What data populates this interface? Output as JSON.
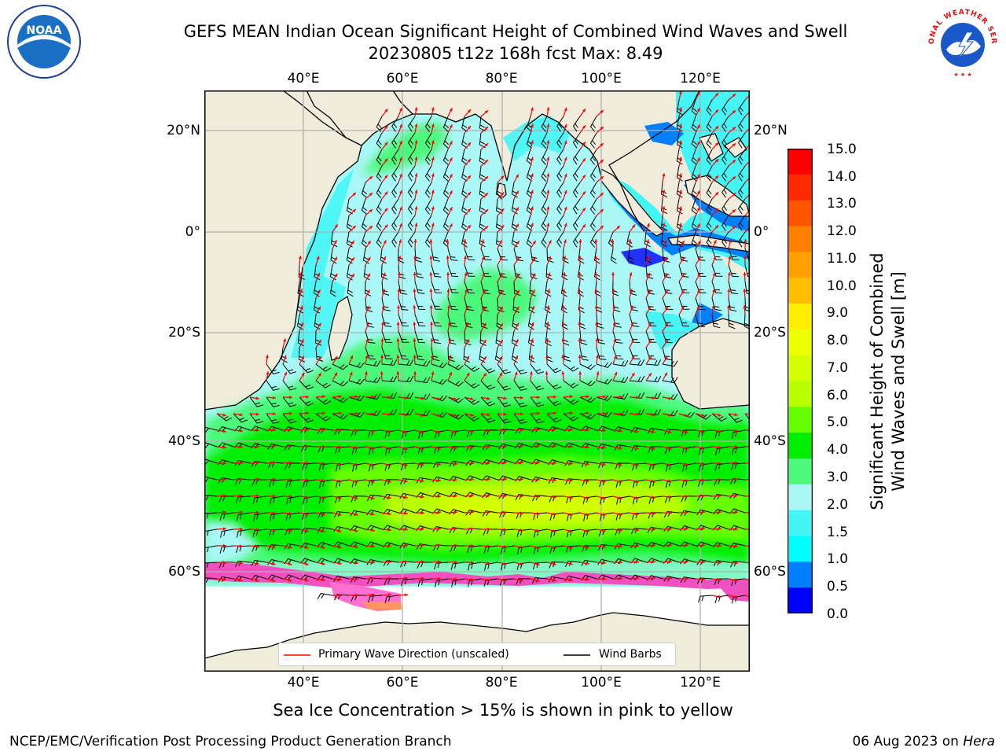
{
  "header": {
    "title_line1": "GEFS MEAN Indian Ocean Significant Height of Combined Wind Waves and Swell",
    "title_line2": "20230805 t12z 168h fcst   Max: 8.49"
  },
  "logos": {
    "noaa_text": "NOAA",
    "nws_text": "NATIONAL WEATHER SERVICE"
  },
  "map": {
    "lon_ticks": [
      "40°E",
      "60°E",
      "80°E",
      "100°E",
      "120°E"
    ],
    "lat_ticks": [
      "20°N",
      "0°",
      "20°S",
      "40°S",
      "60°S"
    ],
    "lon_range": [
      20,
      130
    ],
    "lat_range": [
      -77,
      28
    ],
    "colors": {
      "land": "#efecdc",
      "ocean_base": "#a9f7f7",
      "coast": "#000000",
      "grid": "#b0b0b0",
      "wave_dir": "#ff0000",
      "barb": "#000000"
    }
  },
  "legend": {
    "wave_label": "Primary Wave Direction (unscaled)",
    "barb_label": "Wind Barbs"
  },
  "colorbar": {
    "title_line1": "Significant Height of Combined",
    "title_line2": "Wind Waves and Swell [m]",
    "labels": [
      "15.0",
      "14.0",
      "13.0",
      "12.0",
      "11.0",
      "10.0",
      "9.0",
      "8.0",
      "7.0",
      "6.0",
      "5.0",
      "4.0",
      "3.0",
      "2.0",
      "1.5",
      "1.0",
      "0.5",
      "0.0"
    ],
    "colors": [
      "#ff0000",
      "#ff2a00",
      "#ff5500",
      "#ff8000",
      "#ff9f00",
      "#ffbe00",
      "#ffee00",
      "#f0ff00",
      "#d4ff00",
      "#b8ff00",
      "#66ff00",
      "#00ee00",
      "#4cf97a",
      "#a9f7f7",
      "#45f5f5",
      "#00ffff",
      "#0080ff",
      "#0000ff"
    ]
  },
  "footer": {
    "ice_note": "Sea Ice Concentration > 15% is shown in pink to yellow",
    "left": "NCEP/EMC/Verification Post Processing Product Generation Branch",
    "right_date": "06 Aug 2023 on ",
    "right_host": "Hera"
  }
}
